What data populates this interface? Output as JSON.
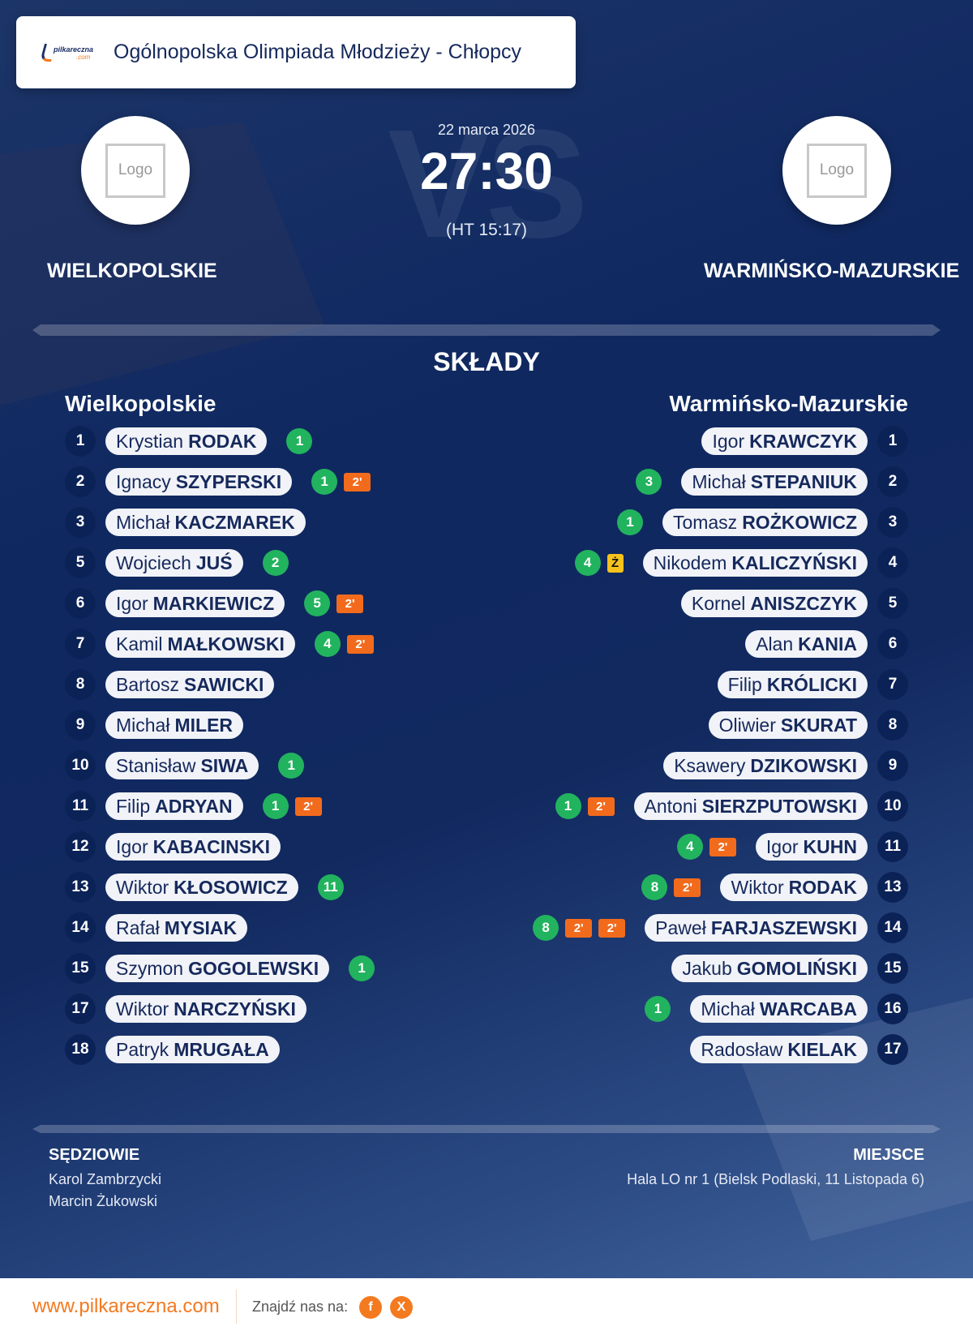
{
  "header": {
    "competition": "Ogólnopolska Olimpiada Młodzieży - Chłopcy",
    "brand_logo_text": "pilkareczna.com"
  },
  "match": {
    "date": "22 marca 2026",
    "score": "27:30",
    "halftime": "(HT 15:17)",
    "vs_watermark": "VS",
    "home": {
      "name": "WIELKOPOLSKIE",
      "logo_text": "Logo"
    },
    "away": {
      "name": "WARMIŃSKO-MAZURSKIE",
      "logo_text": "Logo"
    }
  },
  "lineups": {
    "title": "SKŁADY",
    "home": {
      "team": "Wielkopolskie",
      "players": [
        {
          "number": "1",
          "first": "Krystian",
          "last": "RODAK",
          "goals": "1",
          "events": []
        },
        {
          "number": "2",
          "first": "Ignacy",
          "last": "SZYPERSKI",
          "goals": "1",
          "events": [
            "2'"
          ]
        },
        {
          "number": "3",
          "first": "Michał",
          "last": "KACZMAREK",
          "goals": null,
          "events": []
        },
        {
          "number": "5",
          "first": "Wojciech",
          "last": "JUŚ",
          "goals": "2",
          "events": []
        },
        {
          "number": "6",
          "first": "Igor",
          "last": "MARKIEWICZ",
          "goals": "5",
          "events": [
            "2'"
          ]
        },
        {
          "number": "7",
          "first": "Kamil",
          "last": "MAŁKOWSKI",
          "goals": "4",
          "events": [
            "2'"
          ]
        },
        {
          "number": "8",
          "first": "Bartosz",
          "last": "SAWICKI",
          "goals": null,
          "events": []
        },
        {
          "number": "9",
          "first": "Michał",
          "last": "MILER",
          "goals": null,
          "events": []
        },
        {
          "number": "10",
          "first": "Stanisław",
          "last": "SIWA",
          "goals": "1",
          "events": []
        },
        {
          "number": "11",
          "first": "Filip",
          "last": "ADRYAN",
          "goals": "1",
          "events": [
            "2'"
          ]
        },
        {
          "number": "12",
          "first": "Igor",
          "last": "KABACINSKI",
          "goals": null,
          "events": []
        },
        {
          "number": "13",
          "first": "Wiktor",
          "last": "KŁOSOWICZ",
          "goals": "11",
          "events": []
        },
        {
          "number": "14",
          "first": "Rafał",
          "last": "MYSIAK",
          "goals": null,
          "events": []
        },
        {
          "number": "15",
          "first": "Szymon",
          "last": "GOGOLEWSKI",
          "goals": "1",
          "events": []
        },
        {
          "number": "17",
          "first": "Wiktor",
          "last": "NARCZYŃSKI",
          "goals": null,
          "events": []
        },
        {
          "number": "18",
          "first": "Patryk",
          "last": "MRUGAŁA",
          "goals": null,
          "events": []
        }
      ]
    },
    "away": {
      "team": "Warmińsko-Mazurskie",
      "players": [
        {
          "number": "1",
          "first": "Igor",
          "last": "KRAWCZYK",
          "goals": null,
          "events": []
        },
        {
          "number": "2",
          "first": "Michał",
          "last": "STEPANIUK",
          "goals": "3",
          "events": []
        },
        {
          "number": "3",
          "first": "Tomasz",
          "last": "ROŻKOWICZ",
          "goals": "1",
          "events": []
        },
        {
          "number": "4",
          "first": "Nikodem",
          "last": "KALICZYŃSKI",
          "goals": "4",
          "events": [
            "Ż"
          ]
        },
        {
          "number": "5",
          "first": "Kornel",
          "last": "ANISZCZYK",
          "goals": null,
          "events": []
        },
        {
          "number": "6",
          "first": "Alan",
          "last": "KANIA",
          "goals": null,
          "events": []
        },
        {
          "number": "7",
          "first": "Filip",
          "last": "KRÓLICKI",
          "goals": null,
          "events": []
        },
        {
          "number": "8",
          "first": "Oliwier",
          "last": "SKURAT",
          "goals": null,
          "events": []
        },
        {
          "number": "9",
          "first": "Ksawery",
          "last": "DZIKOWSKI",
          "goals": null,
          "events": []
        },
        {
          "number": "10",
          "first": "Antoni",
          "last": "SIERZPUTOWSKI",
          "goals": "1",
          "events": [
            "2'"
          ]
        },
        {
          "number": "11",
          "first": "Igor",
          "last": "KUHN",
          "goals": "4",
          "events": [
            "2'"
          ]
        },
        {
          "number": "13",
          "first": "Wiktor",
          "last": "RODAK",
          "goals": "8",
          "events": [
            "2'"
          ]
        },
        {
          "number": "14",
          "first": "Paweł",
          "last": "FARJASZEWSKI",
          "goals": "8",
          "events": [
            "2'",
            "2'"
          ]
        },
        {
          "number": "15",
          "first": "Jakub",
          "last": "GOMOLIŃSKI",
          "goals": null,
          "events": []
        },
        {
          "number": "16",
          "first": "Michał",
          "last": "WARCABA",
          "goals": "1",
          "events": []
        },
        {
          "number": "17",
          "first": "Radosław",
          "last": "KIELAK",
          "goals": null,
          "events": []
        }
      ]
    }
  },
  "officials": {
    "title": "SĘDZIOWIE",
    "names": [
      "Karol Zambrzycki",
      "Marcin Żukowski"
    ]
  },
  "venue": {
    "title": "MIEJSCE",
    "text": "Hala LO nr 1 (Bielsk Podlaski, 11 Listopada 6)"
  },
  "footer": {
    "url": "www.pilkareczna.com",
    "find_us": "Znajdź nas na:",
    "facebook": "f",
    "x": "X"
  },
  "colors": {
    "navy": "#0f2860",
    "goal": "#22b35e",
    "suspension": "#f26b1d",
    "yellow_card": "#f7c21b",
    "brand_orange": "#f47a20"
  }
}
